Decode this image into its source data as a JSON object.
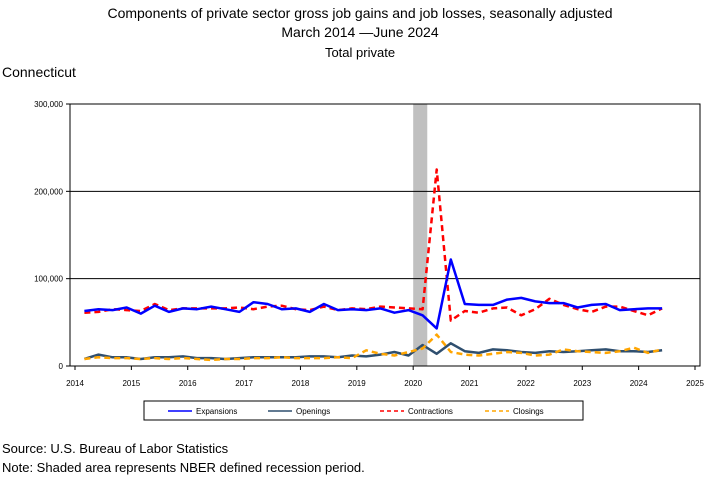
{
  "chart_data": {
    "type": "line",
    "title_line1": "Components of private sector gross job gains and job losses, seasonally adjusted",
    "title_line2": "March 2014 —June 2024",
    "subtitle": "Total private",
    "area_label": "Connecticut",
    "source": "Source: U.S. Bureau of Labor Statistics",
    "note": "Note: Shaded area represents NBER defined recession period.",
    "ylim": [
      0,
      300000
    ],
    "y_ticks": [
      0,
      100000,
      200000,
      300000
    ],
    "y_tick_labels": [
      "0",
      "100,000",
      "200,000",
      "300,000"
    ],
    "xlim": [
      2014,
      2025
    ],
    "x_ticks": [
      2014,
      2015,
      2016,
      2017,
      2018,
      2019,
      2020,
      2021,
      2022,
      2023,
      2024,
      2025
    ],
    "x_tick_labels": [
      "2014",
      "2015",
      "2016",
      "2017",
      "2018",
      "2019",
      "2020",
      "2021",
      "2022",
      "2023",
      "2024",
      "2025"
    ],
    "recession": [
      2020.0,
      2020.25
    ],
    "x": [
      "2014-03",
      "2014-06",
      "2014-09",
      "2014-12",
      "2015-03",
      "2015-06",
      "2015-09",
      "2015-12",
      "2016-03",
      "2016-06",
      "2016-09",
      "2016-12",
      "2017-03",
      "2017-06",
      "2017-09",
      "2017-12",
      "2018-03",
      "2018-06",
      "2018-09",
      "2018-12",
      "2019-03",
      "2019-06",
      "2019-09",
      "2019-12",
      "2020-03",
      "2020-06",
      "2020-09",
      "2020-12",
      "2021-03",
      "2021-06",
      "2021-09",
      "2021-12",
      "2022-03",
      "2022-06",
      "2022-09",
      "2022-12",
      "2023-03",
      "2023-06",
      "2023-09",
      "2023-12",
      "2024-03",
      "2024-06"
    ],
    "series": [
      {
        "name": "Expansions",
        "color": "#0000ff",
        "style": "solid",
        "values": [
          63000,
          65000,
          64000,
          67000,
          60000,
          69000,
          62000,
          66000,
          65000,
          68000,
          65000,
          62000,
          73000,
          71000,
          65000,
          66000,
          62000,
          71000,
          64000,
          65000,
          64000,
          66000,
          61000,
          64000,
          58000,
          43000,
          122000,
          71000,
          70000,
          70000,
          76000,
          78000,
          74000,
          72000,
          72000,
          67000,
          70000,
          71000,
          64000,
          65000,
          66000,
          66000
        ]
      },
      {
        "name": "Openings",
        "color": "#2f4f6f",
        "style": "solid",
        "values": [
          8000,
          13000,
          10000,
          10000,
          8000,
          10000,
          10000,
          11000,
          9000,
          9000,
          8000,
          9000,
          10000,
          10000,
          10000,
          10000,
          11000,
          11000,
          10000,
          12000,
          11000,
          13000,
          16000,
          12000,
          24000,
          14000,
          26000,
          17000,
          15000,
          19000,
          18000,
          16000,
          15000,
          17000,
          16000,
          17000,
          18000,
          19000,
          17000,
          17000,
          16000,
          18000
        ]
      },
      {
        "name": "Contractions",
        "color": "#ff0000",
        "style": "dashed",
        "values": [
          61000,
          62000,
          65000,
          64000,
          63000,
          71000,
          64000,
          66000,
          66000,
          66000,
          66000,
          67000,
          65000,
          68000,
          69000,
          65000,
          64000,
          68000,
          64000,
          66000,
          65000,
          68000,
          67000,
          66000,
          65000,
          225000,
          52000,
          63000,
          61000,
          66000,
          67000,
          58000,
          65000,
          77000,
          70000,
          65000,
          62000,
          68000,
          68000,
          63000,
          58000,
          66000
        ]
      },
      {
        "name": "Closings",
        "color": "#ffa500",
        "style": "dashed",
        "values": [
          8000,
          10000,
          9000,
          9000,
          8000,
          9000,
          8000,
          9000,
          8000,
          7000,
          8000,
          8000,
          9000,
          9000,
          10000,
          9000,
          9000,
          9000,
          10000,
          9000,
          18000,
          14000,
          12000,
          16000,
          20000,
          36000,
          16000,
          13000,
          12000,
          14000,
          16000,
          15000,
          12000,
          13000,
          19000,
          17000,
          16000,
          15000,
          17000,
          21000,
          15000,
          19000
        ]
      }
    ],
    "legend_position": "bottom"
  }
}
